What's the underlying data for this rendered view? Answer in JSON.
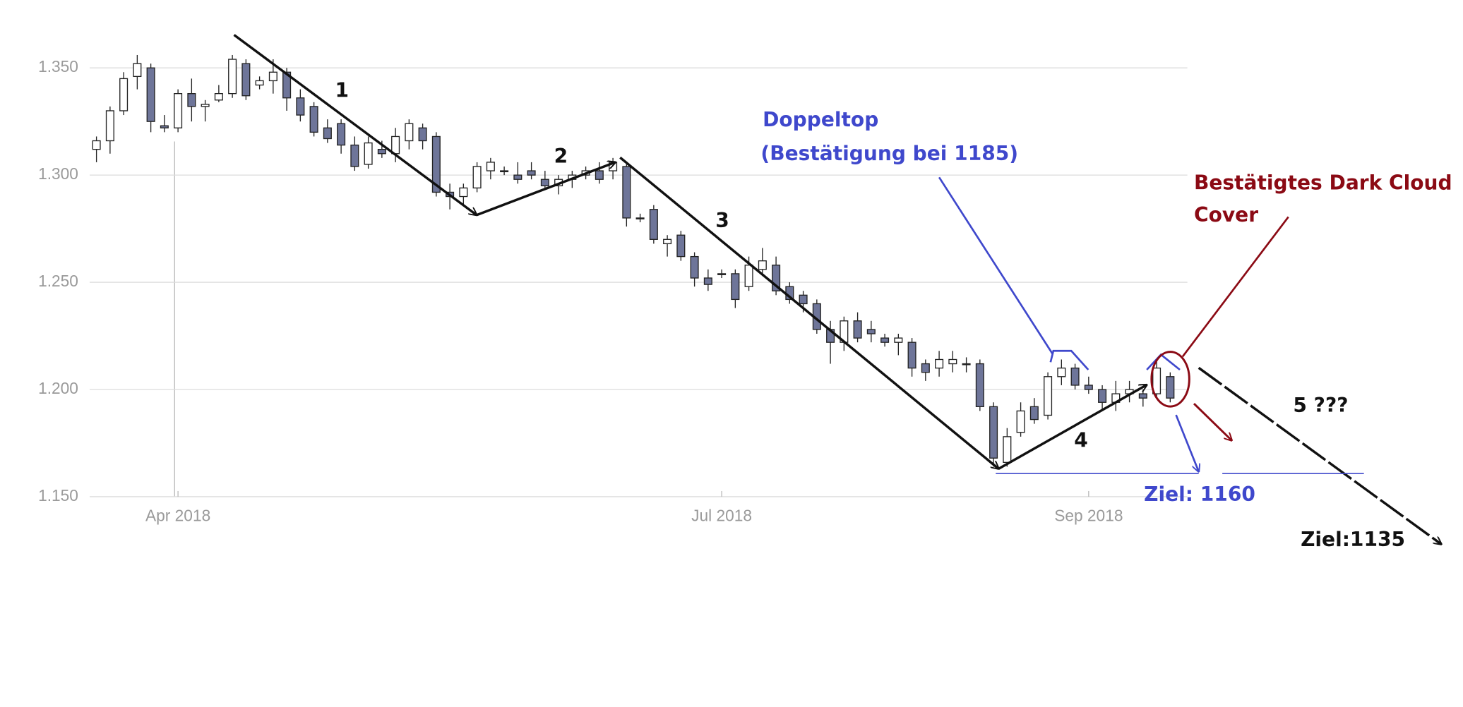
{
  "chart_data": {
    "type": "candlestick",
    "categories": [
      null,
      null,
      null,
      null,
      null,
      null,
      "Apr 2018",
      null,
      null,
      null,
      null,
      null,
      null,
      null,
      null,
      null,
      null,
      null,
      null,
      null,
      null,
      null,
      null,
      null,
      null,
      null,
      null,
      null,
      null,
      null,
      null,
      null,
      null,
      null,
      null,
      null,
      null,
      null,
      null,
      null,
      null,
      null,
      null,
      null,
      null,
      null,
      "Jul 2018",
      null,
      null,
      null,
      null,
      null,
      null,
      null,
      null,
      null,
      null,
      null,
      null,
      null,
      null,
      null,
      null,
      null,
      null,
      null,
      null,
      null,
      null,
      null,
      null,
      null,
      null,
      "Sep 2018",
      null,
      null,
      null,
      null,
      null,
      null
    ],
    "open": [
      1.312,
      1.316,
      1.33,
      1.346,
      1.35,
      1.323,
      1.322,
      1.338,
      1.332,
      1.335,
      1.338,
      1.352,
      1.342,
      1.344,
      1.348,
      1.336,
      1.332,
      1.322,
      1.324,
      1.314,
      1.305,
      1.312,
      1.31,
      1.316,
      1.322,
      1.318,
      1.292,
      1.29,
      1.294,
      1.302,
      1.302,
      1.3,
      1.302,
      1.298,
      1.295,
      1.298,
      1.3,
      1.302,
      1.302,
      1.304,
      1.28,
      1.284,
      1.268,
      1.272,
      1.262,
      1.252,
      1.254,
      1.254,
      1.248,
      1.256,
      1.258,
      1.248,
      1.244,
      1.24,
      1.228,
      1.222,
      1.232,
      1.228,
      1.224,
      1.222,
      1.222,
      1.212,
      1.21,
      1.212,
      1.212,
      1.212,
      1.192,
      1.166,
      1.18,
      1.192,
      1.188,
      1.206,
      1.21,
      1.202,
      1.2,
      1.194,
      1.198,
      1.198,
      1.198,
      1.206
    ],
    "high": [
      1.318,
      1.332,
      1.348,
      1.356,
      1.352,
      1.328,
      1.34,
      1.345,
      1.335,
      1.342,
      1.356,
      1.354,
      1.346,
      1.354,
      1.35,
      1.34,
      1.334,
      1.326,
      1.326,
      1.318,
      1.318,
      1.316,
      1.322,
      1.326,
      1.324,
      1.32,
      1.296,
      1.296,
      1.306,
      1.308,
      1.304,
      1.306,
      1.306,
      1.302,
      1.3,
      1.302,
      1.304,
      1.306,
      1.308,
      1.305,
      1.282,
      1.286,
      1.272,
      1.274,
      1.264,
      1.256,
      1.256,
      1.256,
      1.262,
      1.266,
      1.262,
      1.25,
      1.246,
      1.242,
      1.232,
      1.234,
      1.236,
      1.232,
      1.226,
      1.226,
      1.224,
      1.214,
      1.218,
      1.218,
      1.215,
      1.214,
      1.194,
      1.182,
      1.194,
      1.196,
      1.208,
      1.214,
      1.212,
      1.206,
      1.202,
      1.204,
      1.204,
      1.2,
      1.214,
      1.208
    ],
    "low": [
      1.306,
      1.31,
      1.328,
      1.34,
      1.32,
      1.32,
      1.32,
      1.325,
      1.325,
      1.334,
      1.336,
      1.335,
      1.34,
      1.338,
      1.33,
      1.325,
      1.318,
      1.315,
      1.31,
      1.302,
      1.303,
      1.308,
      1.306,
      1.312,
      1.312,
      1.29,
      1.284,
      1.286,
      1.292,
      1.298,
      1.3,
      1.296,
      1.298,
      1.293,
      1.291,
      1.294,
      1.298,
      1.296,
      1.298,
      1.276,
      1.278,
      1.268,
      1.262,
      1.26,
      1.248,
      1.246,
      1.252,
      1.238,
      1.246,
      1.254,
      1.244,
      1.24,
      1.236,
      1.226,
      1.212,
      1.218,
      1.222,
      1.222,
      1.22,
      1.216,
      1.206,
      1.204,
      1.206,
      1.208,
      1.208,
      1.19,
      1.164,
      1.164,
      1.178,
      1.184,
      1.186,
      1.202,
      1.2,
      1.198,
      1.19,
      1.19,
      1.194,
      1.192,
      1.196,
      1.194
    ],
    "close": [
      1.316,
      1.33,
      1.345,
      1.352,
      1.325,
      1.322,
      1.338,
      1.332,
      1.333,
      1.338,
      1.354,
      1.337,
      1.344,
      1.348,
      1.336,
      1.328,
      1.32,
      1.317,
      1.314,
      1.304,
      1.315,
      1.31,
      1.318,
      1.324,
      1.316,
      1.292,
      1.29,
      1.294,
      1.304,
      1.306,
      1.302,
      1.298,
      1.3,
      1.295,
      1.298,
      1.3,
      1.302,
      1.298,
      1.306,
      1.28,
      1.28,
      1.27,
      1.27,
      1.262,
      1.252,
      1.249,
      1.254,
      1.242,
      1.258,
      1.26,
      1.246,
      1.242,
      1.24,
      1.228,
      1.222,
      1.232,
      1.224,
      1.226,
      1.222,
      1.224,
      1.21,
      1.208,
      1.214,
      1.214,
      1.212,
      1.192,
      1.168,
      1.178,
      1.19,
      1.186,
      1.206,
      1.21,
      1.202,
      1.2,
      1.194,
      1.198,
      1.2,
      1.196,
      1.21,
      1.196
    ],
    "up_color": "#ffffff",
    "down_color": "#6e7599",
    "outline_color": "#222222",
    "ylim": [
      1.145,
      1.37
    ],
    "yticks": [
      {
        "value": 1.15,
        "label": "1.150"
      },
      {
        "value": 1.2,
        "label": "1.200"
      },
      {
        "value": 1.25,
        "label": "1.250"
      },
      {
        "value": 1.3,
        "label": "1.300"
      },
      {
        "value": 1.35,
        "label": "1.350"
      }
    ],
    "grid": true,
    "annotations": [
      "1",
      "2",
      "3",
      "4",
      "5 ???",
      "Doppeltop",
      "(Bestätigung bei 1185)",
      "Bestätigtes Dark Cloud",
      "Cover",
      "Ziel: 1160",
      "Ziel:1135"
    ]
  }
}
